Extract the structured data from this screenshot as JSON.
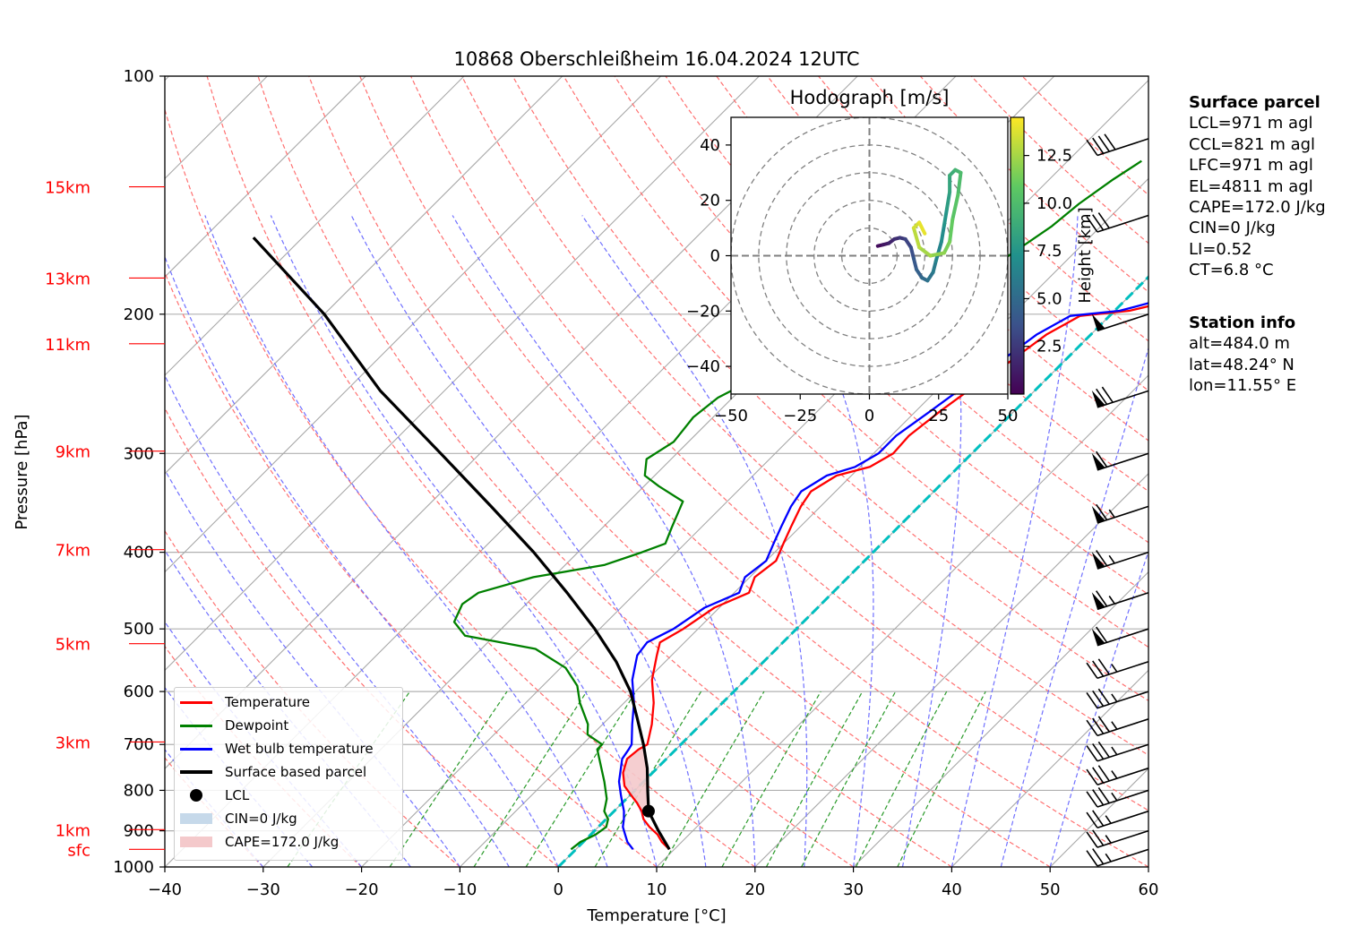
{
  "chart_data": [
    {
      "type": "line",
      "subtype": "skew-T log-P diagram",
      "title": "10868 Oberschleißheim 16.04.2024 12UTC",
      "xlabel": "Temperature [°C]",
      "ylabel": "Pressure [hPa]",
      "xlim": [
        -40,
        60
      ],
      "ylim": [
        1000,
        100
      ],
      "yscale": "log",
      "grid": true,
      "x_ticks": [
        "−40",
        "−30",
        "−20",
        "−10",
        "0",
        "10",
        "20",
        "30",
        "40",
        "50",
        "60"
      ],
      "y_ticks": [
        "100",
        "200",
        "300",
        "400",
        "500",
        "600",
        "700",
        "800",
        "900",
        "1000"
      ],
      "height_labels": [
        {
          "label": "15km",
          "p": 138
        },
        {
          "label": "13km",
          "p": 180
        },
        {
          "label": "11km",
          "p": 218
        },
        {
          "label": "9km",
          "p": 298
        },
        {
          "label": "7km",
          "p": 397
        },
        {
          "label": "5km",
          "p": 522
        },
        {
          "label": "3km",
          "p": 695
        },
        {
          "label": "1km",
          "p": 897
        },
        {
          "label": "sfc",
          "p": 950
        }
      ],
      "series": [
        {
          "name": "Temperature",
          "color": "#ff0000",
          "points": [
            [
              9.5,
              950
            ],
            [
              8.0,
              930
            ],
            [
              6.8,
              910
            ],
            [
              5.2,
              890
            ],
            [
              3.8,
              870
            ],
            [
              2.8,
              850
            ],
            [
              1.5,
              830
            ],
            [
              0.0,
              810
            ],
            [
              -1.5,
              790
            ],
            [
              -3.0,
              760
            ],
            [
              -4.0,
              730
            ],
            [
              -3.8,
              710
            ],
            [
              -3.4,
              700
            ],
            [
              -5.0,
              660
            ],
            [
              -7.0,
              620
            ],
            [
              -9.5,
              580
            ],
            [
              -11.5,
              540
            ],
            [
              -12.5,
              520
            ],
            [
              -11.5,
              500
            ],
            [
              -10.5,
              470
            ],
            [
              -8.5,
              450
            ],
            [
              -9.5,
              430
            ],
            [
              -9.0,
              410
            ],
            [
              -10.0,
              390
            ],
            [
              -11.0,
              370
            ],
            [
              -12.0,
              350
            ],
            [
              -12.5,
              335
            ],
            [
              -11.5,
              320
            ],
            [
              -9.0,
              312
            ],
            [
              -8.0,
              300
            ],
            [
              -8.2,
              285
            ],
            [
              -7.5,
              265
            ],
            [
              -6.5,
              245
            ],
            [
              -5.5,
              230
            ],
            [
              -4.5,
              212
            ],
            [
              -3.0,
              201
            ],
            [
              1.5,
              198
            ],
            [
              5.0,
              192
            ],
            [
              7.5,
              185
            ],
            [
              7.0,
              175
            ],
            [
              7.5,
              165
            ],
            [
              7.0,
              155
            ],
            [
              8.0,
              145
            ],
            [
              9.5,
              133
            ],
            [
              10.5,
              120
            ],
            [
              9.5,
              115
            ]
          ]
        },
        {
          "name": "Dewpoint",
          "color": "#008000",
          "points": [
            [
              -0.5,
              950
            ],
            [
              -0.3,
              930
            ],
            [
              0.5,
              910
            ],
            [
              0.8,
              890
            ],
            [
              0.2,
              870
            ],
            [
              -1.0,
              850
            ],
            [
              -2.0,
              820
            ],
            [
              -4.0,
              780
            ],
            [
              -8.0,
              710
            ],
            [
              -8.0,
              700
            ],
            [
              -10.5,
              680
            ],
            [
              -11.5,
              660
            ],
            [
              -14.5,
              620
            ],
            [
              -16.5,
              590
            ],
            [
              -19.5,
              560
            ],
            [
              -24.5,
              530
            ],
            [
              -33.0,
              510
            ],
            [
              -35.5,
              490
            ],
            [
              -36.5,
              465
            ],
            [
              -36.0,
              450
            ],
            [
              -32.0,
              430
            ],
            [
              -26.0,
              415
            ],
            [
              -23.5,
              400
            ],
            [
              -22.0,
              390
            ],
            [
              -23.0,
              372
            ],
            [
              -24.5,
              345
            ],
            [
              -28.5,
              330
            ],
            [
              -31.0,
              320
            ],
            [
              -32.5,
              305
            ],
            [
              -31.5,
              290
            ],
            [
              -32.0,
              270
            ],
            [
              -31.5,
              255
            ],
            [
              -29.5,
              240
            ],
            [
              -28.5,
              225
            ],
            [
              -26.5,
              205
            ],
            [
              -23.5,
              196
            ],
            [
              -18.5,
              185
            ],
            [
              -16.5,
              170
            ],
            [
              -15.0,
              155
            ],
            [
              -14.5,
              145
            ],
            [
              -13.5,
              135
            ],
            [
              -12.5,
              128
            ]
          ]
        },
        {
          "name": "Wet bulb temperature",
          "color": "#0000ff",
          "points": [
            [
              5.8,
              950
            ],
            [
              4.5,
              930
            ],
            [
              3.5,
              910
            ],
            [
              2.5,
              890
            ],
            [
              1.8,
              870
            ],
            [
              1.0,
              850
            ],
            [
              0.0,
              830
            ],
            [
              -1.0,
              810
            ],
            [
              -2.5,
              780
            ],
            [
              -4.5,
              730
            ],
            [
              -4.8,
              710
            ],
            [
              -5.0,
              700
            ],
            [
              -7.0,
              660
            ],
            [
              -9.0,
              620
            ],
            [
              -11.5,
              580
            ],
            [
              -13.5,
              540
            ],
            [
              -13.8,
              520
            ],
            [
              -12.5,
              500
            ],
            [
              -11.5,
              470
            ],
            [
              -9.5,
              450
            ],
            [
              -10.5,
              430
            ],
            [
              -10.0,
              410
            ],
            [
              -11.0,
              390
            ],
            [
              -12.0,
              370
            ],
            [
              -13.0,
              350
            ],
            [
              -13.5,
              335
            ],
            [
              -12.5,
              320
            ],
            [
              -10.5,
              312
            ],
            [
              -9.5,
              300
            ],
            [
              -9.5,
              285
            ],
            [
              -8.5,
              265
            ],
            [
              -7.5,
              245
            ],
            [
              -6.5,
              230
            ],
            [
              -5.5,
              212
            ],
            [
              -4.0,
              201
            ],
            [
              0.5,
              198
            ],
            [
              3.5,
              192
            ],
            [
              6.0,
              185
            ],
            [
              5.5,
              175
            ],
            [
              6.0,
              165
            ],
            [
              5.5,
              155
            ],
            [
              6.5,
              145
            ],
            [
              8.0,
              133
            ],
            [
              9.0,
              120
            ],
            [
              8.5,
              115
            ]
          ]
        },
        {
          "name": "Surface based parcel",
          "color": "#000000",
          "points": [
            [
              9.5,
              950
            ],
            [
              6.5,
              900
            ],
            [
              3.5,
              850
            ],
            [
              1.3,
              800
            ],
            [
              -1.0,
              750
            ],
            [
              -3.8,
              700
            ],
            [
              -7.0,
              650
            ],
            [
              -10.5,
              600
            ],
            [
              -15.0,
              550
            ],
            [
              -20.5,
              500
            ],
            [
              -27.0,
              450
            ],
            [
              -34.5,
              400
            ],
            [
              -43.5,
              350
            ],
            [
              -54.0,
              300
            ],
            [
              -66.5,
              250
            ],
            [
              -80.0,
              200
            ],
            [
              -95.0,
              160
            ]
          ]
        }
      ],
      "lcl": {
        "name": "LCL",
        "t": 3.5,
        "p": 850
      },
      "freezing_level_line": {
        "color": "#00bfbf",
        "t": 0
      },
      "cin_label": "CIN=0 J/kg",
      "cape_label": "CAPE=172.0 J/kg",
      "legend": {
        "position": "lower-left",
        "entries": [
          "Temperature",
          "Dewpoint",
          "Wet bulb temperature",
          "Surface based parcel",
          "LCL",
          "CIN=0 J/kg",
          "CAPE=172.0 J/kg"
        ]
      },
      "wind_barbs": [
        {
          "p": 950,
          "speed_kt": 25
        },
        {
          "p": 900,
          "speed_kt": 25
        },
        {
          "p": 850,
          "speed_kt": 25
        },
        {
          "p": 800,
          "speed_kt": 35
        },
        {
          "p": 750,
          "speed_kt": 35
        },
        {
          "p": 700,
          "speed_kt": 35
        },
        {
          "p": 650,
          "speed_kt": 35
        },
        {
          "p": 600,
          "speed_kt": 35
        },
        {
          "p": 550,
          "speed_kt": 35
        },
        {
          "p": 500,
          "speed_kt": 60
        },
        {
          "p": 450,
          "speed_kt": 65
        },
        {
          "p": 400,
          "speed_kt": 65
        },
        {
          "p": 350,
          "speed_kt": 65
        },
        {
          "p": 300,
          "speed_kt": 60
        },
        {
          "p": 250,
          "speed_kt": 70
        },
        {
          "p": 200,
          "speed_kt": 50
        },
        {
          "p": 150,
          "speed_kt": 30
        },
        {
          "p": 120,
          "speed_kt": 40
        }
      ]
    },
    {
      "type": "line",
      "subtype": "hodograph",
      "title": "Hodograph [m/s]",
      "xlim": [
        -50,
        50
      ],
      "ylim": [
        -50,
        50
      ],
      "x_ticks": [
        "−50",
        "−25",
        "0",
        "25",
        "50"
      ],
      "y_ticks": [
        "40",
        "20",
        "0",
        "−20",
        "−40"
      ],
      "rings": [
        10,
        20,
        30,
        40,
        50
      ],
      "colorbar": {
        "label": "Height [km]",
        "ticks": [
          "2.5",
          "5.0",
          "7.5",
          "10.0",
          "12.5"
        ],
        "range": [
          0,
          14.5
        ]
      },
      "points": [
        [
          3,
          3.5,
          0.5
        ],
        [
          5,
          4,
          1.0
        ],
        [
          7,
          4.5,
          1.5
        ],
        [
          9,
          6,
          2.0
        ],
        [
          11,
          6.5,
          2.5
        ],
        [
          13,
          6,
          3.0
        ],
        [
          15,
          3,
          3.5
        ],
        [
          16,
          -1,
          4.0
        ],
        [
          17,
          -5,
          4.5
        ],
        [
          19,
          -8,
          5.0
        ],
        [
          21,
          -9,
          5.5
        ],
        [
          23,
          -6,
          6.0
        ],
        [
          24,
          -2,
          6.5
        ],
        [
          26,
          5,
          7.0
        ],
        [
          27,
          11,
          7.5
        ],
        [
          28,
          17,
          8.0
        ],
        [
          29,
          23,
          8.5
        ],
        [
          29,
          29,
          9.0
        ],
        [
          31,
          31,
          9.5
        ],
        [
          33,
          30,
          10.0
        ],
        [
          32,
          22,
          10.5
        ],
        [
          30,
          13,
          11.0
        ],
        [
          29,
          5,
          11.5
        ],
        [
          27,
          1,
          12.0
        ],
        [
          22,
          0,
          12.5
        ],
        [
          18,
          3,
          13.0
        ],
        [
          16,
          10,
          13.5
        ],
        [
          18,
          12,
          14.0
        ],
        [
          20,
          8,
          14.5
        ]
      ]
    }
  ],
  "surface_parcel": {
    "title": "Surface parcel",
    "lines": [
      "LCL=971 m agl",
      "CCL=821 m agl",
      "LFC=971 m agl",
      "EL=4811 m agl",
      "CAPE=172.0 J/kg",
      "CIN=0 J/kg",
      "LI=0.52",
      "CT=6.8 °C"
    ]
  },
  "station_info": {
    "title": "Station info",
    "lines": [
      "alt=484.0 m",
      "lat=48.24° N",
      "lon=11.55° E"
    ]
  }
}
